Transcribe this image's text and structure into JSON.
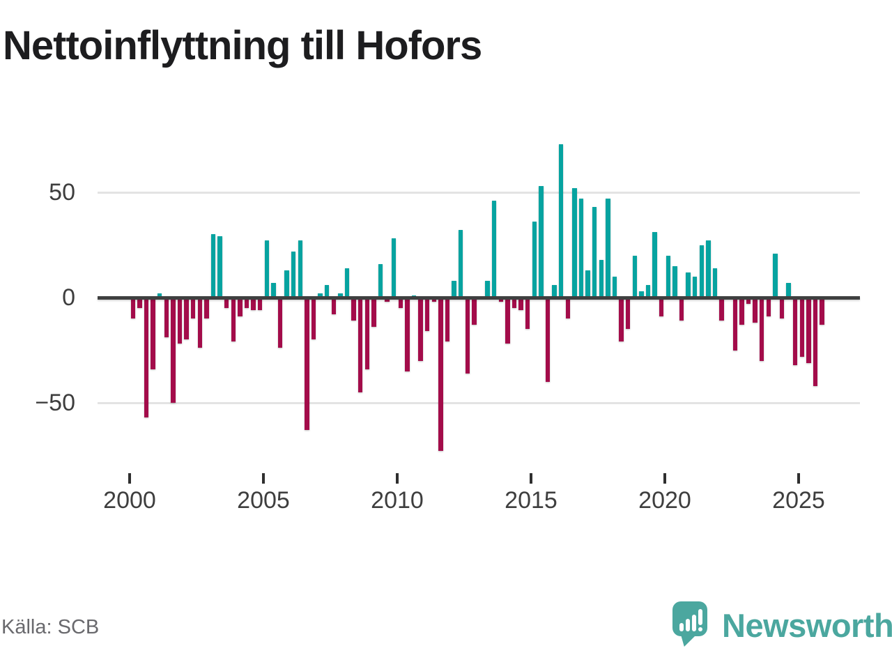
{
  "title": "Nettoinflyttning till Hofors",
  "source": "Källa: SCB",
  "branding": {
    "name": "Newsworthy",
    "color": "#4BA79F",
    "icon": "bar-chart-speech-bubble"
  },
  "colors": {
    "positive_bar": "#06A3A0",
    "negative_bar": "#A30C4A",
    "gridline": "#E3E3E3",
    "zero_line": "#3F4040",
    "title_text": "#1D1D1F",
    "axis_text": "#3E3E3E",
    "source_text": "#69696D",
    "background": "#FFFFFF"
  },
  "y_axis": {
    "ticks": [
      {
        "label": "50",
        "value": 50
      },
      {
        "label": "0",
        "value": 0
      },
      {
        "label": "−50",
        "value": -50
      }
    ]
  },
  "x_axis": {
    "tick_years": [
      "2000",
      "2005",
      "2010",
      "2015",
      "2020",
      "2025"
    ]
  },
  "chart_data": {
    "type": "bar",
    "title": "Nettoinflyttning till Hofors",
    "frequency": "quarterly",
    "start": "2000 Q1",
    "end": "2025 Q4",
    "x_years": [
      2000,
      2001,
      2002,
      2003,
      2004,
      2005,
      2006,
      2007,
      2008,
      2009,
      2010,
      2011,
      2012,
      2013,
      2014,
      2015,
      2016,
      2017,
      2018,
      2019,
      2020,
      2021,
      2022,
      2023,
      2024,
      2025
    ],
    "values": [
      -10,
      -5,
      -57,
      -34,
      2,
      -19,
      -50,
      -22,
      -20,
      -10,
      -24,
      -10,
      30,
      29,
      -5,
      -21,
      -9,
      -5,
      -6,
      -6,
      27,
      7,
      -24,
      13,
      22,
      27,
      -63,
      -20,
      2,
      6,
      -8,
      2,
      14,
      -11,
      -45,
      -34,
      -14,
      16,
      -2,
      28,
      -5,
      -35,
      1,
      -30,
      -16,
      -2,
      -73,
      -21,
      8,
      32,
      -36,
      -13,
      0,
      8,
      46,
      -2,
      -22,
      -5,
      -6,
      -15,
      36,
      53,
      -40,
      6,
      73,
      -10,
      52,
      47,
      13,
      43,
      18,
      47,
      10,
      -21,
      -15,
      20,
      3,
      6,
      31,
      -9,
      20,
      15,
      -11,
      12,
      10,
      25,
      27,
      14,
      -11,
      0,
      -25,
      -13,
      -3,
      -12,
      -30,
      -9,
      21,
      -10,
      7,
      -32,
      -28,
      -31,
      -42,
      -13
    ],
    "ylim": [
      -80,
      80
    ],
    "grid": "horizontal",
    "legend": "none",
    "positive_color": "#06A3A0",
    "negative_color": "#A30C4A"
  }
}
